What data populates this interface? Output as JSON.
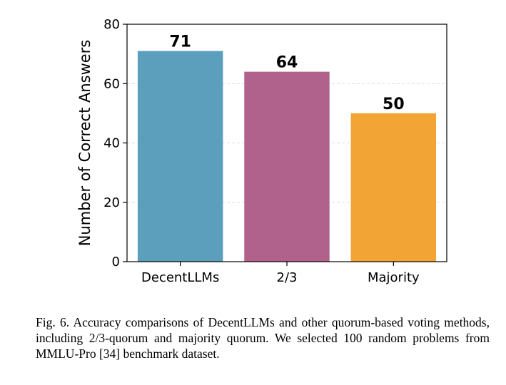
{
  "chart_data": {
    "type": "bar",
    "categories": [
      "DecentLLMs",
      "2/3",
      "Majority"
    ],
    "values": [
      71,
      64,
      50
    ],
    "value_labels": [
      "71",
      "64",
      "50"
    ],
    "colors": [
      "#5b9fbd",
      "#b0628c",
      "#f2a535"
    ],
    "title": "",
    "xlabel": "",
    "ylabel": "Number of Correct Answers",
    "ylim": [
      0,
      80
    ],
    "yticks": [
      0,
      20,
      40,
      60,
      80
    ],
    "ytick_labels": [
      "0",
      "20",
      "40",
      "60",
      "80"
    ],
    "grid": {
      "axis": "y",
      "style": "dashed"
    },
    "legend": "none"
  },
  "caption": {
    "text": "Fig. 6.  Accuracy comparisons of DecentLLMs and other quorum-based voting methods, including 2/3-quorum and majority quorum. We selected 100 random problems from MMLU-Pro [34] benchmark dataset."
  }
}
